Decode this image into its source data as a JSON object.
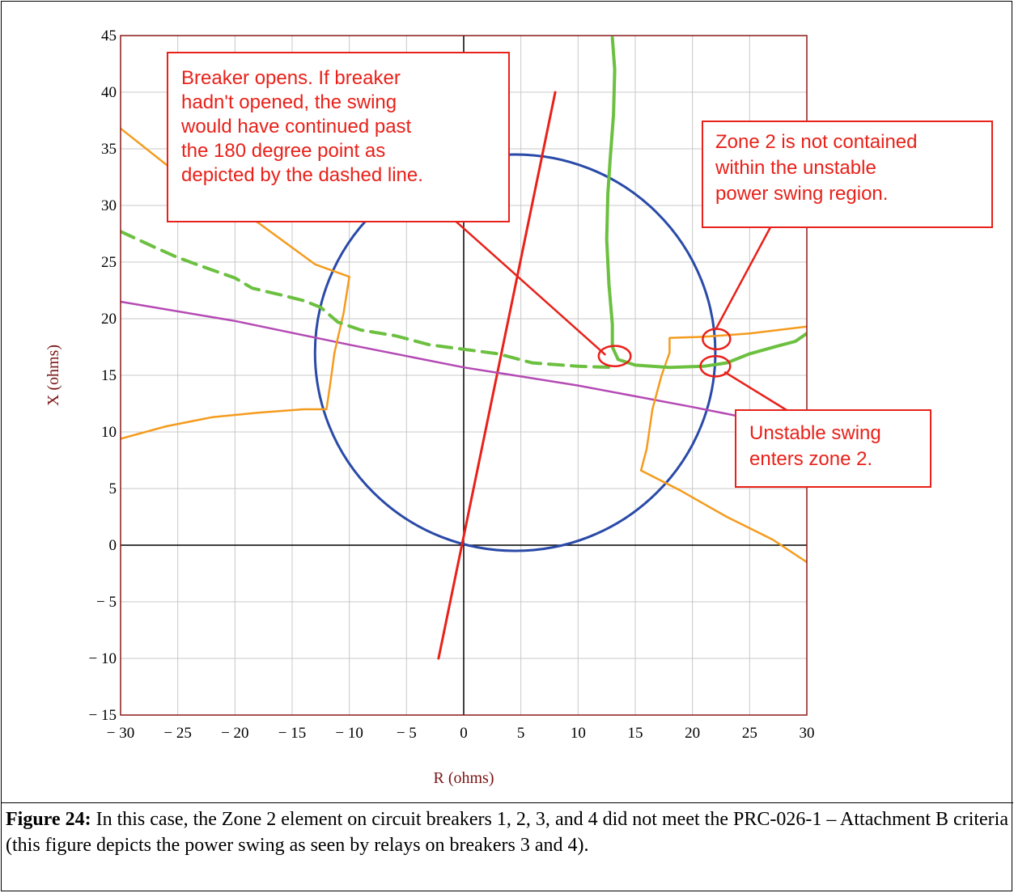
{
  "chart_data": {
    "type": "line",
    "xlabel": "R (ohms)",
    "ylabel": "X (ohms)",
    "xlim": [
      -30,
      30
    ],
    "ylim": [
      -15,
      45
    ],
    "grid": true,
    "x_ticks": [
      -30,
      -25,
      -20,
      -15,
      -10,
      -5,
      0,
      5,
      10,
      15,
      20,
      25,
      30
    ],
    "y_ticks": [
      -15,
      -10,
      -5,
      0,
      5,
      10,
      15,
      20,
      25,
      30,
      35,
      40,
      45
    ],
    "x_tick_labels": [
      "− 30",
      "− 25",
      "− 20",
      "− 15",
      "− 10",
      "− 5",
      "0",
      "5",
      "10",
      "15",
      "20",
      "25",
      "30"
    ],
    "y_tick_labels": [
      "− 15",
      "− 10",
      "− 5",
      "0",
      "5",
      "10",
      "15",
      "20",
      "25",
      "30",
      "35",
      "40",
      "45"
    ],
    "colors": {
      "plot_border": "#8b1a1a",
      "grid": "#c8c8c8",
      "circle": "#2a4aa8",
      "line": "#e8211a",
      "blinder": "#f59b1e",
      "swing": "#6cc040",
      "impedance": "#b44ab4",
      "annotation": "#e8211a"
    },
    "series": [
      {
        "key": "circle",
        "shape": "circle",
        "center": [
          4.5,
          17
        ],
        "radius": 17.5
      },
      {
        "key": "line",
        "points": [
          [
            -2.2,
            -10
          ],
          [
            8,
            40
          ]
        ]
      },
      {
        "key": "impedance",
        "points": [
          [
            -30,
            21.5
          ],
          [
            -20,
            19.8
          ],
          [
            -10,
            17.7
          ],
          [
            0,
            15.7
          ],
          [
            10,
            14.1
          ],
          [
            20,
            12.2
          ],
          [
            25,
            11.2
          ],
          [
            30,
            10.3
          ]
        ]
      },
      {
        "key": "blinder",
        "points": [
          [
            -30,
            36.8
          ],
          [
            -24,
            32
          ],
          [
            -18,
            28.5
          ],
          [
            -13,
            24.8
          ],
          [
            -10,
            23.7
          ],
          [
            -10.5,
            20.5
          ],
          [
            -11.3,
            17
          ],
          [
            -11.7,
            14
          ],
          [
            -12,
            12
          ],
          [
            -14,
            12
          ],
          [
            -18,
            11.7
          ],
          [
            -22,
            11.3
          ],
          [
            -26,
            10.5
          ],
          [
            -30,
            9.4
          ]
        ]
      },
      {
        "key": "blinder",
        "points": [
          [
            30,
            -1.5
          ],
          [
            27,
            0.5
          ],
          [
            23,
            2.5
          ],
          [
            19,
            4.8
          ],
          [
            15.5,
            6.6
          ],
          [
            16,
            8.5
          ],
          [
            16.5,
            12
          ],
          [
            17.3,
            15
          ],
          [
            18,
            17
          ],
          [
            18,
            18.3
          ],
          [
            21,
            18.4
          ],
          [
            25,
            18.7
          ],
          [
            30,
            19.3
          ]
        ]
      },
      {
        "key": "swing",
        "points": [
          [
            13,
            44.8
          ],
          [
            13.2,
            42
          ],
          [
            13.1,
            38
          ],
          [
            12.8,
            34
          ],
          [
            12.6,
            31
          ],
          [
            12.5,
            27
          ],
          [
            12.7,
            23
          ],
          [
            13,
            19.5
          ],
          [
            13,
            17.5
          ],
          [
            13.5,
            16.4
          ],
          [
            15,
            15.9
          ],
          [
            18,
            15.7
          ],
          [
            21,
            15.8
          ],
          [
            23,
            16.1
          ],
          [
            25,
            16.9
          ],
          [
            27.5,
            17.6
          ],
          [
            29,
            18
          ],
          [
            30,
            18.7
          ]
        ]
      },
      {
        "key": "swing",
        "dashed": true,
        "points": [
          [
            -30,
            27.7
          ],
          [
            -27,
            26.3
          ],
          [
            -25,
            25.4
          ],
          [
            -22,
            24.3
          ],
          [
            -20,
            23.6
          ],
          [
            -18.5,
            22.7
          ],
          [
            -16,
            22.1
          ],
          [
            -14,
            21.6
          ],
          [
            -12.5,
            21
          ],
          [
            -11,
            19.7
          ],
          [
            -9,
            19
          ],
          [
            -6,
            18.5
          ],
          [
            -3,
            17.7
          ],
          [
            0,
            17.3
          ],
          [
            3,
            16.9
          ],
          [
            6,
            16.1
          ],
          [
            10,
            15.8
          ],
          [
            13,
            15.7
          ]
        ]
      }
    ],
    "markers": [
      {
        "shape": "ellipse",
        "center": [
          13.2,
          16.7
        ],
        "rx": 1.4,
        "ry": 0.9
      },
      {
        "shape": "ellipse",
        "center": [
          22.1,
          18.2
        ],
        "rx": 1.2,
        "ry": 0.9
      },
      {
        "shape": "ellipse",
        "center": [
          22.0,
          15.8
        ],
        "rx": 1.3,
        "ry": 0.9
      }
    ],
    "annotations": [
      {
        "lines": [
          "Breaker opens.  If breaker",
          "hadn't opened, the swing",
          "would have continued past",
          "the 180 degree point as",
          "depicted by the dashed line."
        ],
        "leader_to": [
          12.4,
          16.8
        ]
      },
      {
        "lines": [
          "Zone 2 is not contained",
          "within the unstable",
          "power swing region."
        ],
        "leader_to": [
          22.0,
          19.0
        ]
      },
      {
        "lines": [
          "Unstable swing",
          "enters zone 2."
        ],
        "leader_to": [
          22.8,
          15.3
        ]
      }
    ]
  },
  "caption": {
    "label": "Figure 24:",
    "text": " In this case, the Zone 2 element on circuit breakers 1, 2, 3, and 4 did not meet the PRC-026-1 – Attachment B criteria (this figure depicts the power swing as seen by relays on breakers 3 and 4)."
  }
}
